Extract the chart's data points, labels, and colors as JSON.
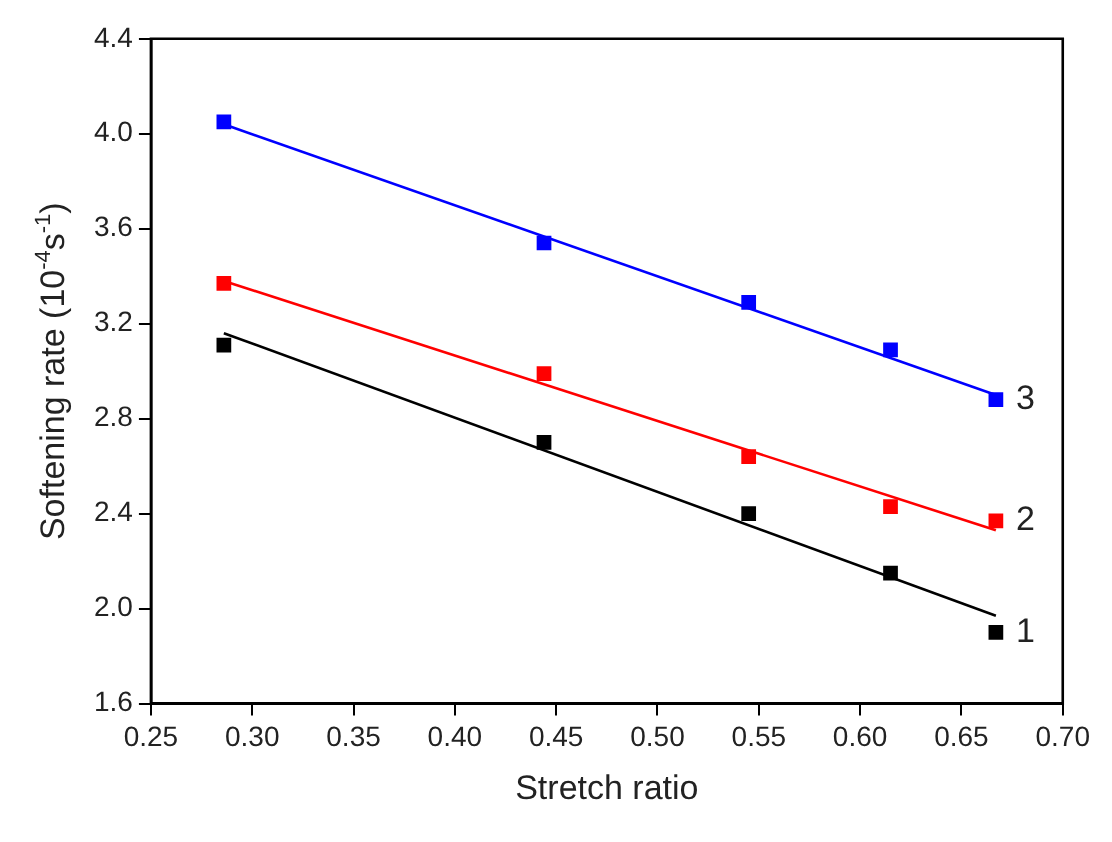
{
  "chart_data": {
    "type": "scatter",
    "xlabel": "Stretch ratio",
    "ylabel": "Softening rate (10$^{-4}$s$^{-1}$)",
    "xlim": [
      0.25,
      0.7
    ],
    "xticks": [
      0.25,
      {
        "value": 0.3,
        "label": "0.30"
      },
      0.35,
      {
        "value": 0.4,
        "label": "0.40"
      },
      0.45,
      {
        "value": 0.5,
        "label": "0.50"
      },
      0.55,
      {
        "value": 0.6,
        "label": "0.60"
      },
      0.65,
      {
        "value": 0.7,
        "label": "0.70"
      }
    ],
    "ylim": [
      1.6,
      4.4
    ],
    "yticks": [
      1.6,
      {
        "value": 2.0,
        "label": "2.0"
      },
      2.4,
      2.8,
      3.2,
      3.6,
      {
        "value": 4.0,
        "label": "4.0"
      },
      4.4
    ],
    "grid": false,
    "legend": false,
    "series": [
      {
        "name": "1",
        "marker": "square",
        "color": "#000000",
        "x": [
          0.286,
          0.444,
          0.545,
          0.615,
          0.667
        ],
        "values": [
          3.11,
          2.7,
          2.4,
          2.15,
          1.9
        ]
      },
      {
        "name": "2",
        "marker": "square",
        "color": "#ff0000",
        "x": [
          0.286,
          0.444,
          0.545,
          0.615,
          0.667
        ],
        "values": [
          3.37,
          2.99,
          2.64,
          2.43,
          2.37
        ]
      },
      {
        "name": "3",
        "marker": "square",
        "color": "#0000ff",
        "x": [
          0.286,
          0.444,
          0.545,
          0.615,
          0.667
        ],
        "values": [
          4.05,
          3.54,
          3.29,
          3.09,
          2.88
        ]
      },
      {
        "type": "line",
        "color": "#000000",
        "x": [
          0.286,
          0.667
        ],
        "values": [
          3.16,
          1.97
        ]
      },
      {
        "type": "line",
        "color": "#ff0000",
        "x": [
          0.286,
          0.667
        ],
        "values": [
          3.38,
          2.33
        ]
      },
      {
        "type": "line",
        "color": "#0000ff",
        "x": [
          0.286,
          0.667
        ],
        "values": [
          4.04,
          2.9
        ]
      }
    ]
  }
}
